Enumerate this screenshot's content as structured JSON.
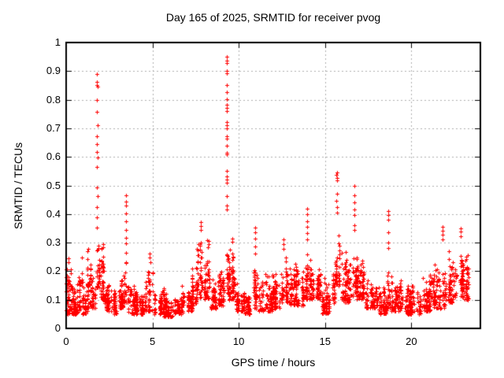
{
  "chart_data": {
    "type": "scatter",
    "title": "Day 165 of 2025, SRMTID for receiver pvog",
    "xlabel": "GPS time / hours",
    "ylabel": "SRMTID / TECUs",
    "xlim": [
      0,
      24
    ],
    "ylim": [
      0,
      1
    ],
    "xtick_values": [
      0,
      5,
      10,
      15,
      20
    ],
    "xtick_labels": [
      "0",
      "5",
      "10",
      "15",
      "20"
    ],
    "ytick_values": [
      0,
      0.1,
      0.2,
      0.3,
      0.4,
      0.5,
      0.6,
      0.7,
      0.8,
      0.9,
      1
    ],
    "ytick_labels": [
      "0",
      "0.1",
      "0.2",
      "0.3",
      "0.4",
      "0.5",
      "0.6",
      "0.7",
      "0.8",
      "0.9",
      "1"
    ],
    "grid": true,
    "legend": "none",
    "marker": "plus",
    "colors": {
      "marker": "#ff0000",
      "grid": "#b0b0b0",
      "border": "#000000",
      "background": "#ffffff",
      "text": "#000000"
    },
    "seed": 20250165,
    "scatter_style": {
      "burst_min": 5,
      "burst_max": 13,
      "x_jitter": 0.08,
      "low_bias": 1.4
    },
    "baseline_segments": [
      [
        0.02,
        0.35,
        60,
        0.05,
        0.24
      ],
      [
        0.35,
        0.75,
        55,
        0.05,
        0.16
      ],
      [
        0.75,
        0.95,
        30,
        0.06,
        0.27
      ],
      [
        0.95,
        1.25,
        40,
        0.05,
        0.16
      ],
      [
        1.25,
        1.5,
        35,
        0.07,
        0.29
      ],
      [
        1.5,
        1.78,
        30,
        0.07,
        0.2
      ],
      [
        1.78,
        1.95,
        28,
        0.14,
        0.34
      ],
      [
        1.95,
        2.2,
        40,
        0.1,
        0.32
      ],
      [
        2.2,
        2.65,
        55,
        0.06,
        0.18
      ],
      [
        2.65,
        2.95,
        40,
        0.05,
        0.14
      ],
      [
        2.95,
        3.35,
        50,
        0.07,
        0.22
      ],
      [
        3.35,
        3.6,
        32,
        0.09,
        0.27
      ],
      [
        3.6,
        4.25,
        80,
        0.05,
        0.16
      ],
      [
        4.25,
        4.55,
        40,
        0.05,
        0.13
      ],
      [
        4.55,
        5.05,
        60,
        0.06,
        0.22
      ],
      [
        5.05,
        5.65,
        70,
        0.05,
        0.16
      ],
      [
        5.65,
        6.3,
        80,
        0.04,
        0.13
      ],
      [
        6.3,
        6.75,
        55,
        0.05,
        0.12
      ],
      [
        6.75,
        7.3,
        65,
        0.06,
        0.17
      ],
      [
        7.3,
        7.55,
        32,
        0.08,
        0.25
      ],
      [
        7.55,
        8.35,
        105,
        0.1,
        0.35
      ],
      [
        8.35,
        8.75,
        50,
        0.07,
        0.2
      ],
      [
        8.75,
        9.2,
        55,
        0.08,
        0.23
      ],
      [
        9.25,
        9.45,
        32,
        0.12,
        0.35
      ],
      [
        9.45,
        9.85,
        55,
        0.1,
        0.32
      ],
      [
        9.85,
        10.35,
        60,
        0.06,
        0.18
      ],
      [
        10.35,
        10.8,
        55,
        0.05,
        0.15
      ],
      [
        10.8,
        11.15,
        40,
        0.07,
        0.22
      ],
      [
        11.15,
        12.05,
        110,
        0.06,
        0.2
      ],
      [
        12.05,
        12.45,
        50,
        0.07,
        0.2
      ],
      [
        12.45,
        12.85,
        50,
        0.09,
        0.29
      ],
      [
        12.85,
        13.75,
        110,
        0.08,
        0.24
      ],
      [
        13.75,
        14.15,
        50,
        0.1,
        0.3
      ],
      [
        14.15,
        14.75,
        80,
        0.1,
        0.26
      ],
      [
        14.75,
        15.35,
        70,
        0.05,
        0.18
      ],
      [
        15.35,
        15.58,
        25,
        0.08,
        0.22
      ],
      [
        15.58,
        15.85,
        35,
        0.14,
        0.38
      ],
      [
        15.85,
        16.45,
        70,
        0.09,
        0.28
      ],
      [
        16.45,
        16.85,
        48,
        0.1,
        0.3
      ],
      [
        16.85,
        17.35,
        60,
        0.1,
        0.28
      ],
      [
        17.35,
        18.05,
        85,
        0.07,
        0.19
      ],
      [
        18.05,
        18.55,
        60,
        0.05,
        0.16
      ],
      [
        18.55,
        18.8,
        28,
        0.07,
        0.2
      ],
      [
        18.8,
        19.55,
        90,
        0.06,
        0.2
      ],
      [
        19.55,
        20.55,
        120,
        0.05,
        0.17
      ],
      [
        20.55,
        21.25,
        85,
        0.06,
        0.2
      ],
      [
        21.25,
        22.05,
        95,
        0.07,
        0.23
      ],
      [
        22.05,
        22.55,
        60,
        0.09,
        0.28
      ],
      [
        22.55,
        23.05,
        65,
        0.11,
        0.31
      ],
      [
        23.05,
        23.3,
        45,
        0.1,
        0.32
      ]
    ],
    "spike_points": [
      [
        1.8,
        0.89
      ],
      [
        1.8,
        0.862
      ],
      [
        1.79,
        0.852
      ],
      [
        1.81,
        0.845
      ],
      [
        1.8,
        0.8
      ],
      [
        1.8,
        0.758
      ],
      [
        1.81,
        0.712
      ],
      [
        1.8,
        0.672
      ],
      [
        1.79,
        0.645
      ],
      [
        1.8,
        0.618
      ],
      [
        1.81,
        0.597
      ],
      [
        1.8,
        0.565
      ],
      [
        1.8,
        0.492
      ],
      [
        1.81,
        0.464
      ],
      [
        1.8,
        0.425
      ],
      [
        1.79,
        0.388
      ],
      [
        1.8,
        0.352
      ],
      [
        9.3,
        0.95
      ],
      [
        9.31,
        0.937
      ],
      [
        9.29,
        0.929
      ],
      [
        9.3,
        0.9
      ],
      [
        9.31,
        0.893
      ],
      [
        9.3,
        0.851
      ],
      [
        9.29,
        0.826
      ],
      [
        9.3,
        0.801
      ],
      [
        9.31,
        0.782
      ],
      [
        9.3,
        0.771
      ],
      [
        9.32,
        0.759
      ],
      [
        9.29,
        0.722
      ],
      [
        9.3,
        0.712
      ],
      [
        9.31,
        0.7
      ],
      [
        9.3,
        0.672
      ],
      [
        9.29,
        0.664
      ],
      [
        9.3,
        0.64
      ],
      [
        9.31,
        0.615
      ],
      [
        9.3,
        0.608
      ],
      [
        9.3,
        0.552
      ],
      [
        9.31,
        0.532
      ],
      [
        9.29,
        0.521
      ],
      [
        9.3,
        0.51
      ],
      [
        9.32,
        0.462
      ],
      [
        9.3,
        0.43
      ],
      [
        9.31,
        0.415
      ],
      [
        3.47,
        0.465
      ],
      [
        3.46,
        0.443
      ],
      [
        3.48,
        0.43
      ],
      [
        3.47,
        0.401
      ],
      [
        3.47,
        0.376
      ],
      [
        3.46,
        0.345
      ],
      [
        3.48,
        0.316
      ],
      [
        3.47,
        0.298
      ],
      [
        13.95,
        0.42
      ],
      [
        13.94,
        0.4
      ],
      [
        13.96,
        0.376
      ],
      [
        13.95,
        0.355
      ],
      [
        13.95,
        0.332
      ],
      [
        13.94,
        0.31
      ],
      [
        15.68,
        0.545
      ],
      [
        15.67,
        0.538
      ],
      [
        15.69,
        0.526
      ],
      [
        15.68,
        0.518
      ],
      [
        15.68,
        0.471
      ],
      [
        15.67,
        0.446
      ],
      [
        15.69,
        0.424
      ],
      [
        15.68,
        0.405
      ],
      [
        16.7,
        0.5
      ],
      [
        16.69,
        0.466
      ],
      [
        16.71,
        0.442
      ],
      [
        16.7,
        0.415
      ],
      [
        16.7,
        0.398
      ],
      [
        16.69,
        0.362
      ],
      [
        16.71,
        0.345
      ],
      [
        18.65,
        0.41
      ],
      [
        18.64,
        0.396
      ],
      [
        18.66,
        0.379
      ],
      [
        18.65,
        0.336
      ],
      [
        18.65,
        0.301
      ],
      [
        18.64,
        0.282
      ],
      [
        10.95,
        0.352
      ],
      [
        10.94,
        0.335
      ],
      [
        10.96,
        0.314
      ],
      [
        10.95,
        0.286
      ],
      [
        10.95,
        0.262
      ],
      [
        4.85,
        0.262
      ],
      [
        4.84,
        0.247
      ],
      [
        4.86,
        0.231
      ],
      [
        12.6,
        0.312
      ],
      [
        12.59,
        0.296
      ],
      [
        12.61,
        0.277
      ],
      [
        21.8,
        0.355
      ],
      [
        21.79,
        0.342
      ],
      [
        21.81,
        0.328
      ],
      [
        21.8,
        0.31
      ],
      [
        22.85,
        0.35
      ],
      [
        22.84,
        0.338
      ],
      [
        22.86,
        0.322
      ],
      [
        7.8,
        0.372
      ],
      [
        7.79,
        0.358
      ],
      [
        7.81,
        0.345
      ],
      [
        0.15,
        0.245
      ],
      [
        0.14,
        0.232
      ]
    ]
  }
}
